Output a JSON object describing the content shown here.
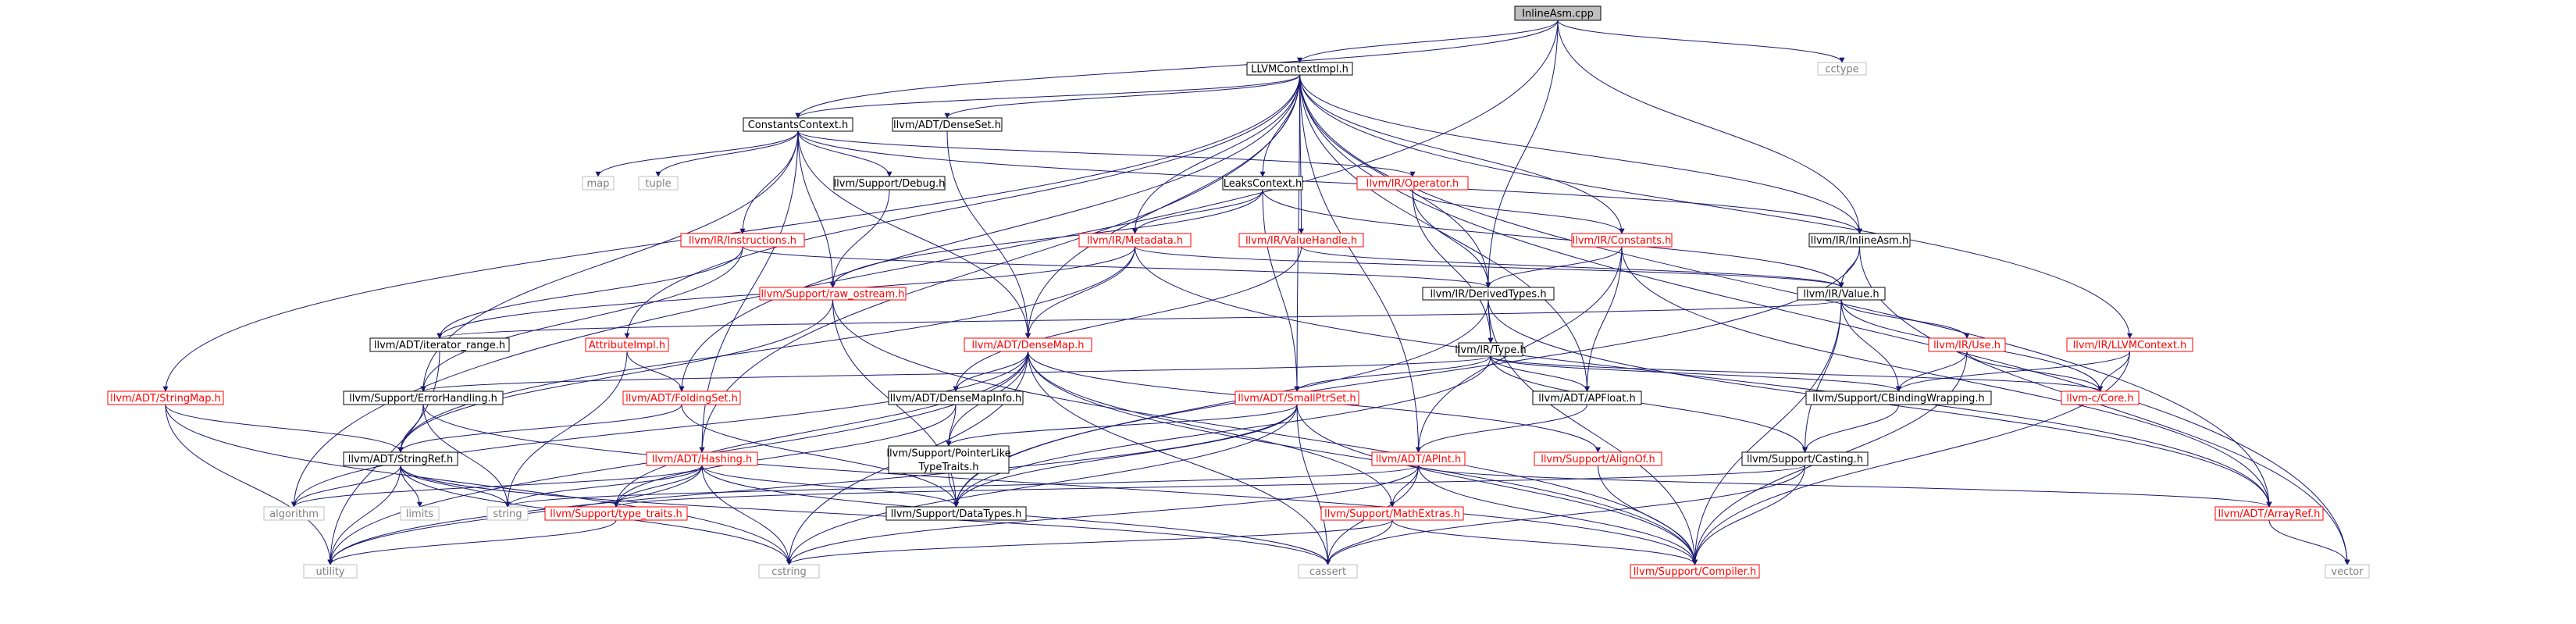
{
  "graph": {
    "colors": {
      "edge": "#191970",
      "root_fill": "#bfbfbf",
      "node_border": "#000000",
      "missing_border": "#ff0000",
      "text": "#000000",
      "missing_text": "#ff0000",
      "external_border": "#bfbfbf",
      "external_text": "#000000"
    },
    "nodes": [
      {
        "id": "root",
        "label": "InlineAsm.cpp",
        "kind": "root"
      },
      {
        "id": "llvmctx",
        "label": "LLVMContextImpl.h",
        "kind": "normal"
      },
      {
        "id": "cctype",
        "label": "cctype",
        "kind": "external"
      },
      {
        "id": "constctx",
        "label": "ConstantsContext.h",
        "kind": "normal"
      },
      {
        "id": "denseset",
        "label": "llvm/ADT/DenseSet.h",
        "kind": "normal"
      },
      {
        "id": "map",
        "label": "map",
        "kind": "external"
      },
      {
        "id": "tuple",
        "label": "tuple",
        "kind": "external"
      },
      {
        "id": "debug",
        "label": "llvm/Support/Debug.h",
        "kind": "normal"
      },
      {
        "id": "leaks",
        "label": "LeaksContext.h",
        "kind": "normal"
      },
      {
        "id": "operator",
        "label": "llvm/IR/Operator.h",
        "kind": "missing"
      },
      {
        "id": "instructions",
        "label": "llvm/IR/Instructions.h",
        "kind": "missing"
      },
      {
        "id": "metadata",
        "label": "llvm/IR/Metadata.h",
        "kind": "missing"
      },
      {
        "id": "valuehandle",
        "label": "llvm/IR/ValueHandle.h",
        "kind": "missing"
      },
      {
        "id": "constants",
        "label": "llvm/IR/Constants.h",
        "kind": "missing"
      },
      {
        "id": "inlineasmh",
        "label": "llvm/IR/InlineAsm.h",
        "kind": "normal"
      },
      {
        "id": "rawostream",
        "label": "llvm/Support/raw_ostream.h",
        "kind": "missing"
      },
      {
        "id": "derivedtypes",
        "label": "llvm/IR/DerivedTypes.h",
        "kind": "normal"
      },
      {
        "id": "value",
        "label": "llvm/IR/Value.h",
        "kind": "normal"
      },
      {
        "id": "iterrange",
        "label": "llvm/ADT/iterator_range.h",
        "kind": "normal"
      },
      {
        "id": "attrimpl",
        "label": "AttributeImpl.h",
        "kind": "missing"
      },
      {
        "id": "densemap",
        "label": "llvm/ADT/DenseMap.h",
        "kind": "missing"
      },
      {
        "id": "type",
        "label": "llvm/IR/Type.h",
        "kind": "normal"
      },
      {
        "id": "use",
        "label": "llvm/IR/Use.h",
        "kind": "missing"
      },
      {
        "id": "llvmctxh",
        "label": "llvm/IR/LLVMContext.h",
        "kind": "missing"
      },
      {
        "id": "stringmap",
        "label": "llvm/ADT/StringMap.h",
        "kind": "missing"
      },
      {
        "id": "errhandling",
        "label": "llvm/Support/ErrorHandling.h",
        "kind": "normal"
      },
      {
        "id": "foldingset",
        "label": "llvm/ADT/FoldingSet.h",
        "kind": "missing"
      },
      {
        "id": "densemapinfo",
        "label": "llvm/ADT/DenseMapInfo.h",
        "kind": "normal"
      },
      {
        "id": "smallptrset",
        "label": "llvm/ADT/SmallPtrSet.h",
        "kind": "missing"
      },
      {
        "id": "apfloat",
        "label": "llvm/ADT/APFloat.h",
        "kind": "normal"
      },
      {
        "id": "cbinding",
        "label": "llvm/Support/CBindingWrapping.h",
        "kind": "normal"
      },
      {
        "id": "llvmccore",
        "label": "llvm-c/Core.h",
        "kind": "missing"
      },
      {
        "id": "stringref",
        "label": "llvm/ADT/StringRef.h",
        "kind": "normal"
      },
      {
        "id": "ptrlike",
        "label": "llvm/Support/PointerLike\nTypeTraits.h",
        "kind": "normal"
      },
      {
        "id": "hashing",
        "label": "llvm/ADT/Hashing.h",
        "kind": "missing"
      },
      {
        "id": "alignof",
        "label": "llvm/Support/AlignOf.h",
        "kind": "missing"
      },
      {
        "id": "apint",
        "label": "llvm/ADT/APInt.h",
        "kind": "missing"
      },
      {
        "id": "casting",
        "label": "llvm/Support/Casting.h",
        "kind": "normal"
      },
      {
        "id": "algorithm",
        "label": "algorithm",
        "kind": "external"
      },
      {
        "id": "limits",
        "label": "limits",
        "kind": "external"
      },
      {
        "id": "string",
        "label": "string",
        "kind": "external"
      },
      {
        "id": "typetraits",
        "label": "llvm/Support/type_traits.h",
        "kind": "missing"
      },
      {
        "id": "datatypes",
        "label": "llvm/Support/DataTypes.h",
        "kind": "normal"
      },
      {
        "id": "mathextras",
        "label": "llvm/Support/MathExtras.h",
        "kind": "missing"
      },
      {
        "id": "arrayref",
        "label": "llvm/ADT/ArrayRef.h",
        "kind": "missing"
      },
      {
        "id": "utility",
        "label": "utility",
        "kind": "external"
      },
      {
        "id": "cstring",
        "label": "cstring",
        "kind": "external"
      },
      {
        "id": "cassert",
        "label": "cassert",
        "kind": "external"
      },
      {
        "id": "compiler",
        "label": "llvm/Support/Compiler.h",
        "kind": "missing"
      },
      {
        "id": "vector",
        "label": "vector",
        "kind": "external"
      }
    ],
    "edges": [
      [
        "root",
        "llvmctx"
      ],
      [
        "root",
        "constctx"
      ],
      [
        "root",
        "derivedtypes"
      ],
      [
        "root",
        "inlineasmh"
      ],
      [
        "root",
        "cctype"
      ],
      [
        "root",
        "algorithm"
      ],
      [
        "llvmctx",
        "constctx"
      ],
      [
        "llvmctx",
        "denseset"
      ],
      [
        "llvmctx",
        "leaks"
      ],
      [
        "llvmctx",
        "metadata"
      ],
      [
        "llvmctx",
        "valuehandle"
      ],
      [
        "llvmctx",
        "constants"
      ],
      [
        "llvmctx",
        "inlineasmh"
      ],
      [
        "llvmctx",
        "derivedtypes"
      ],
      [
        "llvmctx",
        "densemap"
      ],
      [
        "llvmctx",
        "stringmap"
      ],
      [
        "llvmctx",
        "attrimpl"
      ],
      [
        "llvmctx",
        "foldingset"
      ],
      [
        "llvmctx",
        "hashing"
      ],
      [
        "llvmctx",
        "smallptrset"
      ],
      [
        "llvmctx",
        "apfloat"
      ],
      [
        "llvmctx",
        "apint"
      ],
      [
        "llvmctx",
        "llvmctxh"
      ],
      [
        "llvmctx",
        "arrayref"
      ],
      [
        "llvmctx",
        "vector"
      ],
      [
        "constctx",
        "map"
      ],
      [
        "constctx",
        "tuple"
      ],
      [
        "constctx",
        "debug"
      ],
      [
        "constctx",
        "operator"
      ],
      [
        "constctx",
        "instructions"
      ],
      [
        "constctx",
        "inlineasmh"
      ],
      [
        "constctx",
        "rawostream"
      ],
      [
        "constctx",
        "densemap"
      ],
      [
        "constctx",
        "hashing"
      ],
      [
        "constctx",
        "errhandling"
      ],
      [
        "denseset",
        "densemap"
      ],
      [
        "debug",
        "rawostream"
      ],
      [
        "leaks",
        "metadata"
      ],
      [
        "leaks",
        "rawostream"
      ],
      [
        "leaks",
        "smallptrset"
      ],
      [
        "leaks",
        "value"
      ],
      [
        "operator",
        "derivedtypes"
      ],
      [
        "operator",
        "constants"
      ],
      [
        "operator",
        "type"
      ],
      [
        "instructions",
        "derivedtypes"
      ],
      [
        "instructions",
        "iterrange"
      ],
      [
        "instructions",
        "errhandling"
      ],
      [
        "metadata",
        "value"
      ],
      [
        "metadata",
        "densemap"
      ],
      [
        "metadata",
        "iterrange"
      ],
      [
        "metadata",
        "arrayref"
      ],
      [
        "metadata",
        "stringref"
      ],
      [
        "valuehandle",
        "value"
      ],
      [
        "valuehandle",
        "densemapinfo"
      ],
      [
        "constants",
        "derivedtypes"
      ],
      [
        "constants",
        "apfloat"
      ],
      [
        "constants",
        "apint"
      ],
      [
        "constants",
        "arrayref"
      ],
      [
        "inlineasmh",
        "value"
      ],
      [
        "inlineasmh",
        "vector"
      ],
      [
        "inlineasmh",
        "datatypes"
      ],
      [
        "rawostream",
        "stringref"
      ],
      [
        "rawostream",
        "datatypes"
      ],
      [
        "rawostream",
        "compiler"
      ],
      [
        "derivedtypes",
        "type"
      ],
      [
        "derivedtypes",
        "arrayref"
      ],
      [
        "derivedtypes",
        "compiler"
      ],
      [
        "derivedtypes",
        "datatypes"
      ],
      [
        "value",
        "use"
      ],
      [
        "value",
        "cbinding"
      ],
      [
        "value",
        "casting"
      ],
      [
        "value",
        "llvmccore"
      ],
      [
        "value",
        "compiler"
      ],
      [
        "value",
        "iterrange"
      ],
      [
        "iterrange",
        "utility"
      ],
      [
        "attrimpl",
        "foldingset"
      ],
      [
        "attrimpl",
        "string"
      ],
      [
        "densemap",
        "densemapinfo"
      ],
      [
        "densemap",
        "ptrlike"
      ],
      [
        "densemap",
        "mathextras"
      ],
      [
        "densemap",
        "alignof"
      ],
      [
        "densemap",
        "typetraits"
      ],
      [
        "densemap",
        "cassert"
      ],
      [
        "densemap",
        "cstring"
      ],
      [
        "densemap",
        "utility"
      ],
      [
        "densemap",
        "algorithm"
      ],
      [
        "densemap",
        "compiler"
      ],
      [
        "type",
        "apfloat"
      ],
      [
        "type",
        "smallptrset"
      ],
      [
        "type",
        "cbinding"
      ],
      [
        "type",
        "casting"
      ],
      [
        "type",
        "datatypes"
      ],
      [
        "type",
        "errhandling"
      ],
      [
        "type",
        "llvmccore"
      ],
      [
        "use",
        "cbinding"
      ],
      [
        "use",
        "llvmccore"
      ],
      [
        "use",
        "compiler"
      ],
      [
        "llvmctxh",
        "cbinding"
      ],
      [
        "llvmctxh",
        "llvmccore"
      ],
      [
        "llvmctxh",
        "compiler"
      ],
      [
        "stringmap",
        "stringref"
      ],
      [
        "stringmap",
        "utility"
      ],
      [
        "stringmap",
        "cstring"
      ],
      [
        "errhandling",
        "stringref"
      ],
      [
        "errhandling",
        "compiler"
      ],
      [
        "errhandling",
        "string"
      ],
      [
        "foldingset",
        "stringref"
      ],
      [
        "foldingset",
        "datatypes"
      ],
      [
        "densemapinfo",
        "ptrlike"
      ],
      [
        "densemapinfo",
        "typetraits"
      ],
      [
        "smallptrset",
        "ptrlike"
      ],
      [
        "smallptrset",
        "compiler"
      ],
      [
        "smallptrset",
        "cassert"
      ],
      [
        "smallptrset",
        "cstring"
      ],
      [
        "smallptrset",
        "utility"
      ],
      [
        "smallptrset",
        "datatypes"
      ],
      [
        "apfloat",
        "apint"
      ],
      [
        "cbinding",
        "casting"
      ],
      [
        "stringref",
        "algorithm"
      ],
      [
        "stringref",
        "limits"
      ],
      [
        "stringref",
        "string"
      ],
      [
        "stringref",
        "utility"
      ],
      [
        "stringref",
        "cassert"
      ],
      [
        "stringref",
        "cstring"
      ],
      [
        "ptrlike",
        "datatypes"
      ],
      [
        "hashing",
        "typetraits"
      ],
      [
        "hashing",
        "algorithm"
      ],
      [
        "hashing",
        "cassert"
      ],
      [
        "hashing",
        "cstring"
      ],
      [
        "hashing",
        "string"
      ],
      [
        "hashing",
        "utility"
      ],
      [
        "hashing",
        "datatypes"
      ],
      [
        "alignof",
        "compiler"
      ],
      [
        "apint",
        "arrayref"
      ],
      [
        "apint",
        "mathextras"
      ],
      [
        "apint",
        "cassert"
      ],
      [
        "apint",
        "compiler"
      ],
      [
        "apint",
        "string"
      ],
      [
        "apint",
        "cstring"
      ],
      [
        "casting",
        "typetraits"
      ],
      [
        "casting",
        "cassert"
      ],
      [
        "casting",
        "compiler"
      ],
      [
        "typetraits",
        "utility"
      ],
      [
        "mathextras",
        "compiler"
      ],
      [
        "mathextras",
        "cassert"
      ],
      [
        "mathextras",
        "cstring"
      ],
      [
        "arrayref",
        "vector"
      ]
    ]
  }
}
